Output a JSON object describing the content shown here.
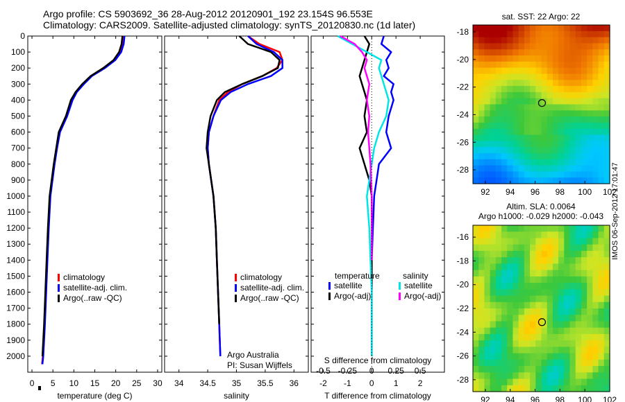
{
  "header": {
    "line1": "Argo profile: CS 5903692_36 28-Aug-2012 20120901_192 23.154S 96.553E",
    "line2": "Climatology: CARS2009. Satellite-adjusted climatology: synTS_20120830.nc (1d later)"
  },
  "colors": {
    "red": "#ff0000",
    "blue": "#0000ff",
    "black": "#000000",
    "cyan": "#00e5e5",
    "magenta": "#ff00ff"
  },
  "stamp": "IMOS 06-Sep-2012 17:01:47",
  "chart_data": [
    {
      "id": "temperature",
      "type": "line",
      "xlabel": "temperature (deg C)",
      "xlim": [
        -1,
        31
      ],
      "xticks": [
        0,
        5,
        10,
        15,
        20,
        25,
        30
      ],
      "ylim": [
        2100,
        0
      ],
      "yticks": [
        0,
        100,
        200,
        300,
        400,
        500,
        600,
        700,
        800,
        900,
        1000,
        1100,
        1200,
        1300,
        1400,
        1500,
        1600,
        1700,
        1800,
        1900,
        2000
      ],
      "legend": [
        "climatology",
        "satellite-adj. clim.",
        "Argo(..raw -QC)"
      ],
      "series": [
        {
          "name": "climatology",
          "color": "red",
          "x": [
            22.0,
            21.8,
            21.2,
            19.8,
            17.3,
            14.2,
            12.3,
            10.6,
            9.6,
            8.3,
            6.6,
            5.9,
            5.3,
            4.8,
            4.3,
            3.9,
            3.6,
            3.3,
            3.0,
            2.8,
            2.6,
            2.4
          ],
          "y": [
            0,
            50,
            100,
            150,
            200,
            250,
            300,
            350,
            400,
            500,
            600,
            700,
            800,
            900,
            1000,
            1200,
            1400,
            1600,
            1800,
            1900,
            2000,
            2050
          ]
        },
        {
          "name": "satellite-adj. clim.",
          "color": "blue",
          "x": [
            22.1,
            21.9,
            21.3,
            19.9,
            17.4,
            14.3,
            12.4,
            10.7,
            9.7,
            8.4,
            6.7,
            6.0,
            5.4,
            4.9,
            4.4,
            4.0,
            3.7,
            3.4,
            3.1,
            2.9,
            2.7,
            2.5
          ],
          "y": [
            0,
            50,
            100,
            150,
            200,
            250,
            300,
            350,
            400,
            500,
            600,
            700,
            800,
            900,
            1000,
            1200,
            1400,
            1600,
            1800,
            1900,
            2000,
            2050
          ]
        },
        {
          "name": "Argo(..raw -QC)",
          "color": "black",
          "x": [
            21.6,
            21.4,
            20.8,
            19.5,
            17.0,
            14.0,
            12.0,
            10.4,
            9.3,
            8.1,
            6.4,
            5.8,
            5.2,
            4.7,
            4.2,
            3.8,
            3.5,
            3.2,
            2.9,
            2.7,
            2.5
          ],
          "y": [
            0,
            50,
            100,
            150,
            200,
            250,
            300,
            350,
            400,
            500,
            600,
            700,
            800,
            900,
            1000,
            1200,
            1400,
            1600,
            1800,
            1900,
            2000
          ]
        }
      ]
    },
    {
      "id": "salinity",
      "type": "line",
      "xlabel": "salinity",
      "xlim": [
        33.75,
        36.25
      ],
      "xticks": [
        34,
        34.5,
        35,
        35.5,
        36
      ],
      "ylim": [
        2100,
        0
      ],
      "legend": [
        "climatology",
        "satellite-adj. clim.",
        "Argo(..raw -QC)"
      ],
      "annotation": [
        "Argo Australia",
        "PI: Susan Wijffels"
      ],
      "series": [
        {
          "name": "climatology",
          "color": "red",
          "x": [
            35.2,
            35.4,
            35.75,
            35.8,
            35.7,
            35.45,
            35.1,
            34.85,
            34.7,
            34.6,
            34.52,
            34.5,
            34.52,
            34.56,
            34.6,
            34.64,
            34.66,
            34.68,
            34.7,
            34.72
          ],
          "y": [
            0,
            50,
            100,
            150,
            200,
            250,
            300,
            350,
            400,
            500,
            600,
            700,
            800,
            900,
            1000,
            1200,
            1400,
            1600,
            1800,
            2000
          ]
        },
        {
          "name": "satellite-adj. clim.",
          "color": "blue",
          "x": [
            35.2,
            35.35,
            35.65,
            35.8,
            35.8,
            35.6,
            35.2,
            34.9,
            34.73,
            34.6,
            34.52,
            34.5,
            34.52,
            34.56,
            34.6,
            34.64,
            34.66,
            34.68,
            34.7,
            34.72
          ],
          "y": [
            0,
            50,
            100,
            150,
            200,
            250,
            300,
            350,
            400,
            500,
            600,
            700,
            800,
            900,
            1000,
            1200,
            1400,
            1600,
            1800,
            2000
          ]
        },
        {
          "name": "Argo(..raw -QC)",
          "color": "black",
          "x": [
            35.05,
            35.2,
            35.6,
            35.75,
            35.72,
            35.45,
            35.1,
            34.8,
            34.66,
            34.55,
            34.5,
            34.48,
            34.52,
            34.56,
            34.6,
            34.64,
            34.66,
            34.68,
            34.7
          ],
          "y": [
            0,
            50,
            100,
            150,
            200,
            250,
            300,
            350,
            400,
            500,
            600,
            700,
            800,
            900,
            1000,
            1200,
            1400,
            1600,
            1800
          ]
        }
      ]
    },
    {
      "id": "difference",
      "type": "line",
      "xlabel": "T difference from climatology",
      "xlabel_top": "S difference from climatology",
      "xlim": [
        -2.5,
        3
      ],
      "xticks": [
        -2,
        -1,
        0,
        1,
        2
      ],
      "xticks_top": [
        -0.5,
        -0.25,
        0,
        0.25,
        0.5
      ],
      "ylim": [
        2100,
        0
      ],
      "legend_titles": [
        "temperature",
        "salinity"
      ],
      "legend": [
        "satellite",
        "Argo(-adj)",
        "satellite",
        "Argo(-adj)"
      ],
      "series": [
        {
          "name": "satellite",
          "quantity": "temperature",
          "color": "blue",
          "x": [
            0.5,
            0.4,
            0.8,
            0.6,
            0.7,
            0.5,
            0.9,
            0.8,
            0.9,
            0.7,
            0.6,
            0.8,
            0.3,
            0.2,
            0.1,
            0.05,
            0.0,
            0.0,
            0.0
          ],
          "y": [
            0,
            50,
            100,
            150,
            200,
            250,
            300,
            350,
            400,
            500,
            600,
            700,
            800,
            900,
            1000,
            1200,
            1400,
            1600,
            2000
          ]
        },
        {
          "name": "Argo(-adj)",
          "quantity": "temperature",
          "color": "black",
          "x": [
            -0.3,
            -0.1,
            -0.2,
            -0.3,
            -0.4,
            -0.5,
            -0.4,
            -0.3,
            -0.2,
            -0.3,
            -0.2,
            -0.5,
            -0.3,
            -0.1,
            0.0,
            0.0,
            0.0,
            0.0,
            0.0
          ],
          "y": [
            0,
            50,
            100,
            150,
            200,
            250,
            300,
            350,
            400,
            500,
            600,
            700,
            800,
            900,
            1000,
            1200,
            1400,
            1600,
            2000
          ]
        },
        {
          "name": "satellite",
          "quantity": "salinity",
          "color": "cyan",
          "x": [
            -1.4,
            -0.8,
            -0.2,
            0.4,
            0.3,
            0.5,
            0.7,
            0.6,
            0.3,
            0.1,
            0.0,
            -0.1,
            -0.2,
            -0.1,
            -0.05,
            0.0,
            0.0
          ],
          "y": [
            0,
            50,
            100,
            150,
            200,
            300,
            400,
            500,
            600,
            700,
            800,
            900,
            1000,
            1200,
            1400,
            1600,
            2000
          ]
        },
        {
          "name": "Argo(-adj)",
          "quantity": "salinity",
          "color": "magenta",
          "x": [
            -1.3,
            -0.7,
            -0.4,
            -0.2,
            -0.3,
            -0.1,
            -0.2,
            -0.1,
            -0.15,
            -0.1,
            -0.05,
            0.0,
            0.0,
            0.0
          ],
          "y": [
            0,
            50,
            100,
            150,
            200,
            300,
            400,
            500,
            600,
            700,
            800,
            1000,
            1200,
            1400
          ]
        }
      ]
    },
    {
      "id": "sst-map",
      "type": "heatmap",
      "title": "sat. SST: 22 Argo: 22",
      "xlim": [
        91,
        102
      ],
      "ylim": [
        -29,
        -17.5
      ],
      "xticks": [
        92,
        94,
        96,
        98,
        100,
        102
      ],
      "yticks": [
        -18,
        -20,
        -22,
        -24,
        -26,
        -28
      ],
      "marker": {
        "lon": 96.553,
        "lat": -23.154
      }
    },
    {
      "id": "sla-map",
      "type": "heatmap",
      "title": "Altim. SLA: 0.0064",
      "subtitle": "Argo h1000: -0.029 h2000: -0.043",
      "xlim": [
        91,
        102
      ],
      "ylim": [
        -29,
        -15
      ],
      "xticks": [
        92,
        94,
        96,
        98,
        100,
        102
      ],
      "yticks": [
        -16,
        -18,
        -20,
        -22,
        -24,
        -26,
        -28
      ],
      "marker": {
        "lon": 96.553,
        "lat": -23.154
      }
    }
  ]
}
